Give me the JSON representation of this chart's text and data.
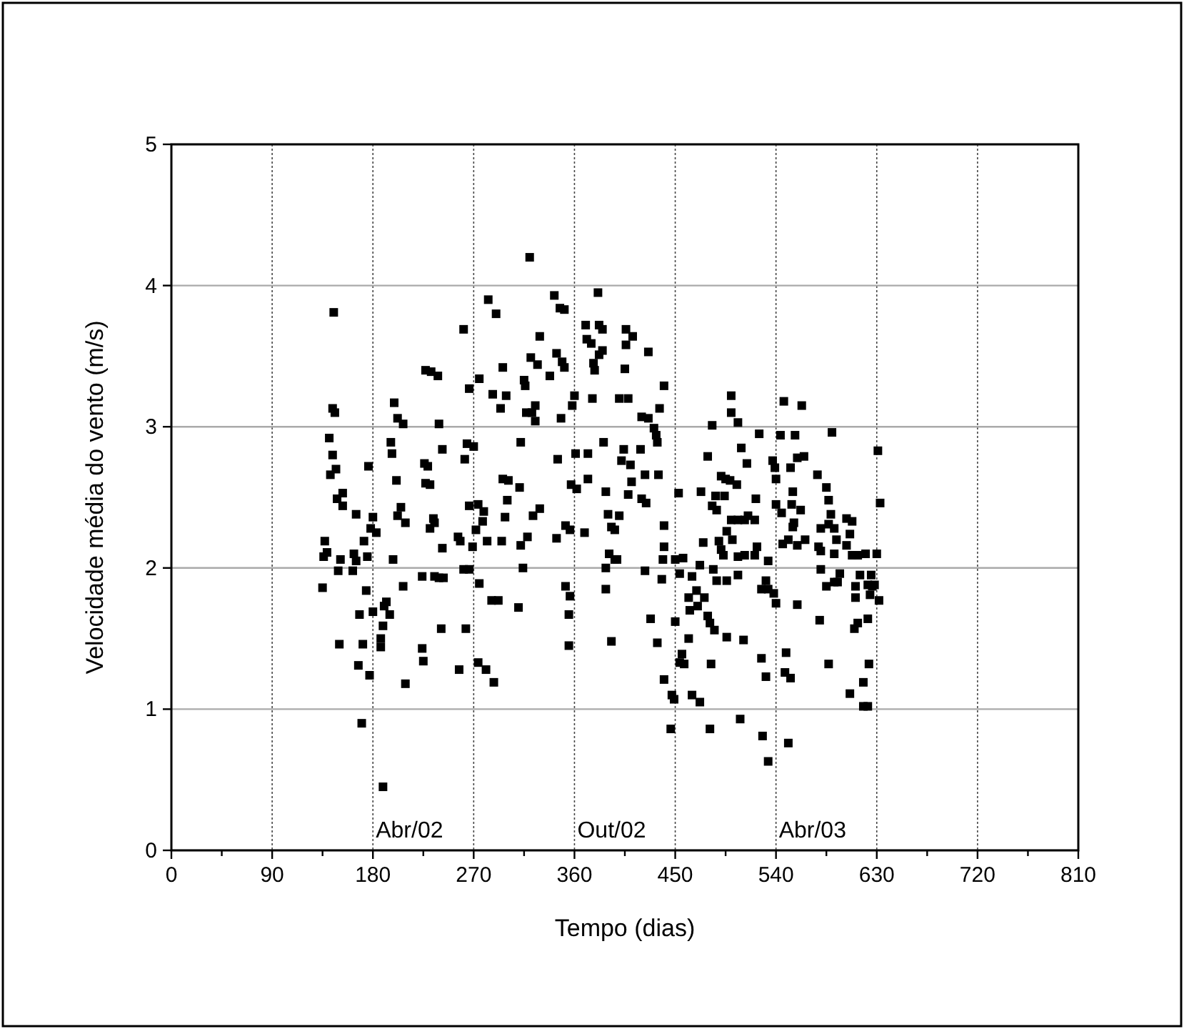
{
  "chart_data": {
    "type": "scatter",
    "xlabel": "Tempo (dias)",
    "ylabel": "Velocidade média do vento (m/s)",
    "xlim": [
      0,
      810
    ],
    "ylim": [
      0,
      5
    ],
    "xticks": [
      0,
      {
        "value": 45,
        "label": null
      },
      90,
      {
        "value": 135,
        "label": null
      },
      180,
      {
        "value": 225,
        "label": null
      },
      270,
      {
        "value": 315,
        "label": null
      },
      360,
      {
        "value": 405,
        "label": null
      },
      450,
      {
        "value": 495,
        "label": null
      },
      540,
      {
        "value": 585,
        "label": null
      },
      630,
      {
        "value": 675,
        "label": null
      },
      720,
      {
        "value": 765,
        "label": null
      },
      810
    ],
    "yticks": [
      0,
      1,
      2,
      3,
      4,
      5
    ],
    "grid": true,
    "marker": "square",
    "annotations": [
      "Abr/02",
      "Out/02",
      "Abr/03"
    ],
    "series": [
      {
        "color": "#000000",
        "x": [
          145,
          144,
          146,
          141,
          144,
          147,
          142,
          148,
          153,
          153,
          165,
          176,
          137,
          136,
          139,
          151,
          149,
          135,
          163,
          165,
          162,
          175,
          172,
          180,
          178,
          183,
          174,
          168,
          180,
          150,
          171,
          167,
          177,
          170,
          189,
          199,
          202,
          207,
          196,
          197,
          201,
          205,
          202,
          209,
          198,
          207,
          192,
          195,
          190,
          189,
          187,
          187,
          209,
          224,
          225,
          224,
          227,
          232,
          226,
          229,
          227,
          231,
          234,
          231,
          235,
          320,
          261,
          283,
          290,
          342,
          347,
          351,
          381,
          370,
          382,
          385,
          371,
          375,
          382,
          385,
          377,
          378,
          406,
          412,
          406,
          426,
          405,
          329,
          321,
          327,
          344,
          349,
          351,
          338,
          296,
          238,
          275,
          266,
          287,
          299,
          294,
          315,
          316,
          325,
          322,
          325,
          317,
          348,
          360,
          358,
          376,
          400,
          408,
          420,
          426,
          431,
          433,
          434,
          440,
          436,
          239,
          264,
          270,
          262,
          242,
          312,
          345,
          361,
          372,
          386,
          404,
          419,
          402,
          410,
          423,
          435,
          296,
          301,
          311,
          300,
          357,
          362,
          372,
          388,
          411,
          408,
          420,
          424,
          266,
          274,
          279,
          278,
          272,
          269,
          298,
          329,
          323,
          318,
          312,
          352,
          356,
          369,
          390,
          400,
          393,
          396,
          235,
          242,
          256,
          258,
          282,
          295,
          344,
          440,
          440,
          439,
          391,
          396,
          398,
          388,
          423,
          438,
          314,
          239,
          243,
          261,
          266,
          275,
          352,
          356,
          286,
          292,
          310,
          388,
          355,
          241,
          263,
          428,
          393,
          434,
          355,
          440,
          257,
          274,
          281,
          288,
          450,
          457,
          453,
          454,
          465,
          462,
          469,
          476,
          463,
          470,
          450,
          462,
          456,
          458,
          454,
          447,
          449,
          446,
          465,
          472,
          481,
          482,
          479,
          481,
          485,
          496,
          511,
          508,
          528,
          533,
          527,
          531,
          549,
          548,
          553,
          551,
          579,
          587,
          606,
          618,
          618,
          622,
          623,
          610,
          613,
          622,
          559,
          484,
          487,
          496,
          506,
          472,
          475,
          489,
          491,
          493,
          506,
          512,
          521,
          523,
          533,
          531,
          527,
          533,
          538,
          540,
          496,
          501,
          500,
          506,
          512,
          515,
          521,
          522,
          483,
          487,
          486,
          494,
          473,
          491,
          495,
          499,
          505,
          479,
          514,
          509,
          483,
          500,
          500,
          506,
          525,
          537,
          539,
          540,
          540,
          545,
          544,
          547,
          557,
          563,
          553,
          559,
          565,
          555,
          554,
          562,
          556,
          555,
          546,
          551,
          559,
          566,
          577,
          585,
          587,
          589,
          580,
          587,
          592,
          594,
          578,
          580,
          592,
          603,
          608,
          606,
          603,
          608,
          613,
          620,
          630,
          580,
          585,
          592,
          597,
          595,
          611,
          615,
          625,
          622,
          626,
          628,
          611,
          624,
          632,
          590,
          631,
          633
        ],
        "values": [
          3.81,
          3.13,
          3.1,
          2.92,
          2.8,
          2.7,
          2.66,
          2.49,
          2.53,
          2.44,
          2.38,
          2.72,
          2.19,
          2.08,
          2.11,
          2.06,
          1.98,
          1.86,
          2.1,
          2.05,
          1.98,
          2.08,
          2.19,
          2.36,
          2.28,
          2.25,
          1.84,
          1.67,
          1.69,
          1.46,
          1.46,
          1.31,
          1.24,
          0.9,
          0.45,
          3.17,
          3.06,
          3.02,
          2.89,
          2.81,
          2.62,
          2.43,
          2.37,
          2.32,
          2.06,
          1.87,
          1.76,
          1.67,
          1.73,
          1.59,
          1.5,
          1.44,
          1.18,
          1.43,
          1.34,
          1.94,
          3.4,
          3.39,
          2.74,
          2.72,
          2.6,
          2.59,
          2.35,
          2.28,
          1.94,
          4.2,
          3.69,
          3.9,
          3.8,
          3.93,
          3.84,
          3.83,
          3.95,
          3.72,
          3.72,
          3.69,
          3.62,
          3.59,
          3.51,
          3.54,
          3.45,
          3.4,
          3.69,
          3.64,
          3.58,
          3.53,
          3.41,
          3.64,
          3.49,
          3.44,
          3.52,
          3.46,
          3.42,
          3.36,
          3.42,
          3.36,
          3.34,
          3.27,
          3.23,
          3.22,
          3.13,
          3.33,
          3.29,
          3.15,
          3.1,
          3.04,
          3.1,
          3.06,
          3.22,
          3.15,
          3.2,
          3.2,
          3.2,
          3.07,
          3.06,
          2.99,
          2.94,
          2.89,
          3.29,
          3.13,
          3.02,
          2.88,
          2.86,
          2.77,
          2.84,
          2.89,
          2.77,
          2.81,
          2.81,
          2.89,
          2.84,
          2.84,
          2.76,
          2.73,
          2.66,
          2.66,
          2.63,
          2.62,
          2.57,
          2.48,
          2.59,
          2.56,
          2.63,
          2.54,
          2.61,
          2.52,
          2.49,
          2.46,
          2.44,
          2.45,
          2.4,
          2.33,
          2.27,
          2.15,
          2.36,
          2.42,
          2.37,
          2.22,
          2.16,
          2.3,
          2.27,
          2.25,
          2.38,
          2.37,
          2.29,
          2.27,
          2.32,
          2.14,
          2.22,
          2.19,
          2.19,
          2.19,
          2.21,
          2.3,
          2.15,
          2.06,
          2.1,
          2.06,
          2.06,
          2.0,
          1.98,
          1.92,
          2.0,
          1.93,
          1.93,
          1.99,
          1.99,
          1.89,
          1.87,
          1.8,
          1.77,
          1.77,
          1.72,
          1.85,
          1.67,
          1.57,
          1.57,
          1.64,
          1.48,
          1.47,
          1.45,
          1.21,
          1.28,
          1.33,
          1.28,
          1.19,
          2.06,
          2.07,
          2.53,
          1.96,
          1.94,
          1.79,
          1.84,
          1.79,
          1.7,
          1.73,
          1.62,
          1.5,
          1.39,
          1.32,
          1.33,
          1.1,
          1.07,
          0.86,
          1.1,
          1.05,
          0.86,
          1.32,
          1.66,
          1.61,
          1.56,
          1.51,
          1.49,
          0.93,
          0.81,
          0.63,
          1.36,
          1.23,
          1.4,
          1.26,
          1.22,
          0.76,
          1.63,
          1.32,
          1.11,
          1.19,
          1.02,
          1.02,
          1.32,
          1.57,
          1.61,
          1.64,
          1.74,
          1.99,
          1.91,
          1.91,
          1.95,
          2.02,
          2.18,
          2.19,
          2.13,
          2.09,
          2.08,
          2.09,
          2.09,
          2.15,
          2.05,
          1.91,
          1.85,
          1.85,
          1.82,
          1.75,
          2.26,
          2.2,
          2.34,
          2.34,
          2.34,
          2.37,
          2.34,
          2.49,
          2.44,
          2.41,
          2.51,
          2.51,
          2.54,
          2.65,
          2.63,
          2.62,
          2.59,
          2.79,
          2.74,
          2.85,
          3.01,
          3.22,
          3.1,
          3.03,
          2.95,
          2.76,
          2.71,
          2.63,
          2.45,
          2.39,
          2.94,
          3.18,
          2.94,
          3.15,
          2.71,
          2.78,
          2.79,
          2.54,
          2.45,
          2.41,
          2.32,
          2.29,
          2.17,
          2.2,
          2.16,
          2.2,
          2.66,
          2.57,
          2.48,
          2.38,
          2.28,
          2.31,
          2.28,
          2.2,
          2.15,
          2.12,
          2.1,
          2.35,
          2.33,
          2.24,
          2.16,
          2.09,
          2.09,
          2.1,
          2.1,
          1.99,
          1.87,
          1.9,
          1.96,
          1.9,
          1.87,
          1.95,
          1.95,
          1.88,
          1.87,
          1.88,
          1.79,
          1.81,
          1.77,
          2.96,
          2.83,
          2.46
        ]
      }
    ]
  }
}
